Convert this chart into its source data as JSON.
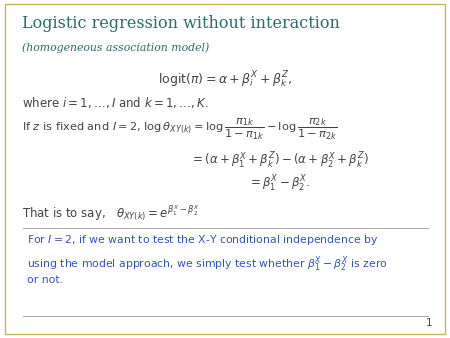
{
  "background_color": "#ffffff",
  "border_color": "#c8b560",
  "title": "Logistic regression without interaction",
  "subtitle": "(homogeneous association model)",
  "title_color": "#2e6b6b",
  "subtitle_color": "#2e6b6b",
  "page_number": "1",
  "blue_text_color": "#3355bb",
  "math_color": "#444444",
  "figsize": [
    4.5,
    3.38
  ],
  "dpi": 100
}
